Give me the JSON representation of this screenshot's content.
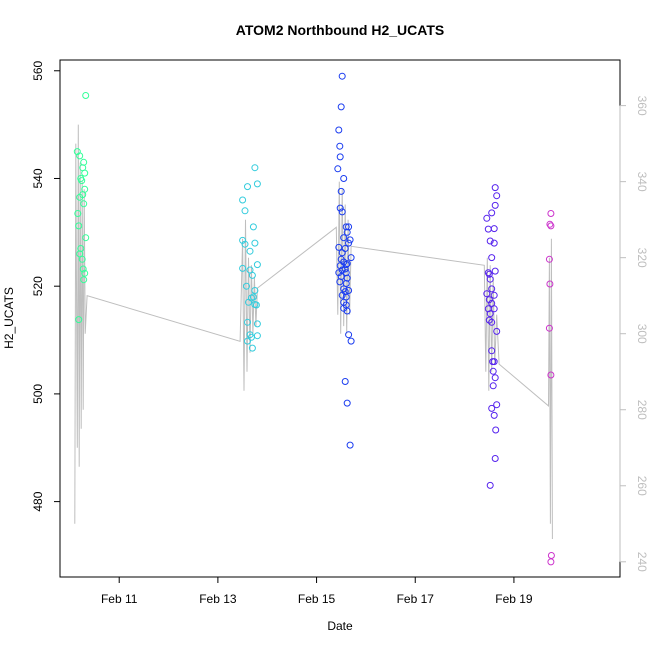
{
  "chart_data": {
    "type": "scatter",
    "title": "ATOM2 Northbound H2_UCATS",
    "xlabel": "Date",
    "ylabel": "H2_UCATS",
    "x_ticks": [
      {
        "label": "Feb 11",
        "day": 11
      },
      {
        "label": "Feb 13",
        "day": 13
      },
      {
        "label": "Feb 15",
        "day": 15
      },
      {
        "label": "Feb 17",
        "day": 17
      },
      {
        "label": "Feb 19",
        "day": 19
      }
    ],
    "y_ticks": [
      480,
      500,
      520,
      540,
      560
    ],
    "y2_ticks": [
      240,
      260,
      280,
      300,
      320,
      340,
      360
    ],
    "xlim_days": [
      9.8,
      21.15
    ],
    "ylim": [
      466,
      562
    ],
    "y2lim": [
      236,
      372
    ],
    "right_axis_color": "#bebebe",
    "line_color": "#bebebe",
    "point_colors": [
      "#33ff99",
      "#33ccdd",
      "#1a3cf0",
      "#5522ee",
      "#cc33cc"
    ],
    "series": [
      {
        "values": [
          [
            10.15,
            545
          ],
          [
            10.2,
            544.2
          ],
          [
            10.28,
            543
          ],
          [
            10.3,
            541
          ],
          [
            10.22,
            540
          ],
          [
            10.3,
            538
          ],
          [
            10.26,
            537
          ],
          [
            10.2,
            536.5
          ],
          [
            10.28,
            535.3
          ],
          [
            10.16,
            533.5
          ],
          [
            10.18,
            531.2
          ],
          [
            10.32,
            529
          ],
          [
            10.22,
            527
          ],
          [
            10.2,
            526
          ],
          [
            10.25,
            525
          ],
          [
            10.27,
            523.2
          ],
          [
            10.3,
            522.4
          ],
          [
            10.28,
            521.2
          ],
          [
            10.18,
            513.8
          ],
          [
            10.32,
            555.4
          ],
          [
            10.26,
            542
          ],
          [
            10.24,
            539.6
          ]
        ]
      },
      {
        "values": [
          [
            13.5,
            536
          ],
          [
            13.55,
            534
          ],
          [
            13.6,
            538.5
          ],
          [
            13.75,
            542
          ],
          [
            13.8,
            539
          ],
          [
            13.72,
            531
          ],
          [
            13.5,
            528.5
          ],
          [
            13.55,
            527.8
          ],
          [
            13.65,
            526.5
          ],
          [
            13.75,
            528
          ],
          [
            13.5,
            523.3
          ],
          [
            13.8,
            524
          ],
          [
            13.65,
            523
          ],
          [
            13.7,
            522
          ],
          [
            13.58,
            520
          ],
          [
            13.75,
            519.2
          ],
          [
            13.72,
            518
          ],
          [
            13.62,
            517
          ],
          [
            13.78,
            516.5
          ],
          [
            13.6,
            513.3
          ],
          [
            13.8,
            513
          ],
          [
            13.65,
            511
          ],
          [
            13.68,
            510.5
          ],
          [
            13.6,
            509.8
          ],
          [
            13.8,
            510.8
          ],
          [
            13.7,
            508.5
          ],
          [
            13.68,
            517.8
          ],
          [
            13.75,
            516.6
          ]
        ]
      },
      {
        "values": [
          [
            15.52,
            559
          ],
          [
            15.5,
            553.3
          ],
          [
            15.45,
            549
          ],
          [
            15.47,
            546
          ],
          [
            15.48,
            544
          ],
          [
            15.43,
            541.8
          ],
          [
            15.55,
            540
          ],
          [
            15.5,
            537.6
          ],
          [
            15.48,
            534.5
          ],
          [
            15.52,
            533.8
          ],
          [
            15.6,
            531
          ],
          [
            15.65,
            531
          ],
          [
            15.55,
            529
          ],
          [
            15.62,
            530
          ],
          [
            15.45,
            527.2
          ],
          [
            15.52,
            526.2
          ],
          [
            15.58,
            527
          ],
          [
            15.65,
            528
          ],
          [
            15.5,
            525
          ],
          [
            15.55,
            524.5
          ],
          [
            15.6,
            524
          ],
          [
            15.62,
            524.2
          ],
          [
            15.48,
            523.8
          ],
          [
            15.52,
            523
          ],
          [
            15.58,
            523.2
          ],
          [
            15.45,
            522.5
          ],
          [
            15.6,
            522.5
          ],
          [
            15.5,
            521.8
          ],
          [
            15.62,
            521.5
          ],
          [
            15.47,
            520.8
          ],
          [
            15.6,
            520.5
          ],
          [
            15.55,
            519.5
          ],
          [
            15.58,
            519
          ],
          [
            15.65,
            519.2
          ],
          [
            15.52,
            518.3
          ],
          [
            15.6,
            518
          ],
          [
            15.55,
            517
          ],
          [
            15.6,
            516.5
          ],
          [
            15.55,
            515.9
          ],
          [
            15.62,
            515.4
          ],
          [
            15.65,
            511
          ],
          [
            15.7,
            509.8
          ],
          [
            15.58,
            502.3
          ],
          [
            15.62,
            498.3
          ],
          [
            15.68,
            490.5
          ],
          [
            15.7,
            525.3
          ],
          [
            15.68,
            528.6
          ]
        ]
      },
      {
        "values": [
          [
            18.45,
            532.6
          ],
          [
            18.62,
            538.3
          ],
          [
            18.65,
            536.8
          ],
          [
            18.62,
            535
          ],
          [
            18.55,
            533.6
          ],
          [
            18.48,
            530.6
          ],
          [
            18.6,
            530.7
          ],
          [
            18.52,
            528.4
          ],
          [
            18.6,
            528
          ],
          [
            18.55,
            525.3
          ],
          [
            18.5,
            522.2
          ],
          [
            18.48,
            522.5
          ],
          [
            18.52,
            521.3
          ],
          [
            18.45,
            518.6
          ],
          [
            18.55,
            519.5
          ],
          [
            18.5,
            517.5
          ],
          [
            18.6,
            518.3
          ],
          [
            18.55,
            516.8
          ],
          [
            18.48,
            515.8
          ],
          [
            18.52,
            514.9
          ],
          [
            18.6,
            515.8
          ],
          [
            18.5,
            513.7
          ],
          [
            18.55,
            513.3
          ],
          [
            18.65,
            511.6
          ],
          [
            18.55,
            508
          ],
          [
            18.57,
            506
          ],
          [
            18.6,
            506
          ],
          [
            18.62,
            503
          ],
          [
            18.58,
            501.5
          ],
          [
            18.65,
            498
          ],
          [
            18.55,
            497.3
          ],
          [
            18.6,
            496
          ],
          [
            18.63,
            493.3
          ],
          [
            18.62,
            488
          ],
          [
            18.52,
            483
          ],
          [
            18.58,
            504.2
          ],
          [
            18.62,
            522.8
          ]
        ]
      },
      {
        "values": [
          [
            19.75,
            533.5
          ],
          [
            19.73,
            531.5
          ],
          [
            19.75,
            531.2
          ],
          [
            19.72,
            525
          ],
          [
            19.73,
            520.4
          ],
          [
            19.72,
            512.2
          ],
          [
            19.75,
            503.5
          ],
          [
            19.76,
            470
          ],
          [
            19.75,
            468.8
          ]
        ]
      }
    ],
    "right_axis_line": [
      [
        10.1,
        250
      ],
      [
        10.12,
        350
      ],
      [
        10.15,
        270
      ],
      [
        10.17,
        355
      ],
      [
        10.19,
        265
      ],
      [
        10.21,
        345
      ],
      [
        10.23,
        275
      ],
      [
        10.25,
        340
      ],
      [
        10.27,
        280
      ],
      [
        10.29,
        338
      ],
      [
        10.31,
        300
      ],
      [
        10.35,
        310
      ],
      [
        13.45,
        298
      ],
      [
        13.5,
        325
      ],
      [
        13.53,
        285
      ],
      [
        13.56,
        330
      ],
      [
        13.59,
        290
      ],
      [
        13.62,
        320
      ],
      [
        13.65,
        295
      ],
      [
        13.68,
        318
      ],
      [
        13.71,
        300
      ],
      [
        13.74,
        315
      ],
      [
        13.77,
        302
      ],
      [
        13.8,
        312
      ],
      [
        15.4,
        328
      ],
      [
        15.43,
        305
      ],
      [
        15.46,
        340
      ],
      [
        15.49,
        300
      ],
      [
        15.52,
        338
      ],
      [
        15.55,
        302
      ],
      [
        15.58,
        334
      ],
      [
        15.61,
        300
      ],
      [
        15.64,
        330
      ],
      [
        15.67,
        305
      ],
      [
        15.7,
        323
      ],
      [
        18.4,
        318
      ],
      [
        18.43,
        290
      ],
      [
        18.46,
        320
      ],
      [
        18.49,
        285
      ],
      [
        18.52,
        318
      ],
      [
        18.55,
        290
      ],
      [
        18.58,
        315
      ],
      [
        18.61,
        292
      ],
      [
        18.65,
        305
      ],
      [
        18.7,
        292
      ],
      [
        19.7,
        281
      ],
      [
        19.72,
        320
      ],
      [
        19.74,
        250
      ],
      [
        19.76,
        325
      ],
      [
        19.78,
        246
      ]
    ]
  }
}
